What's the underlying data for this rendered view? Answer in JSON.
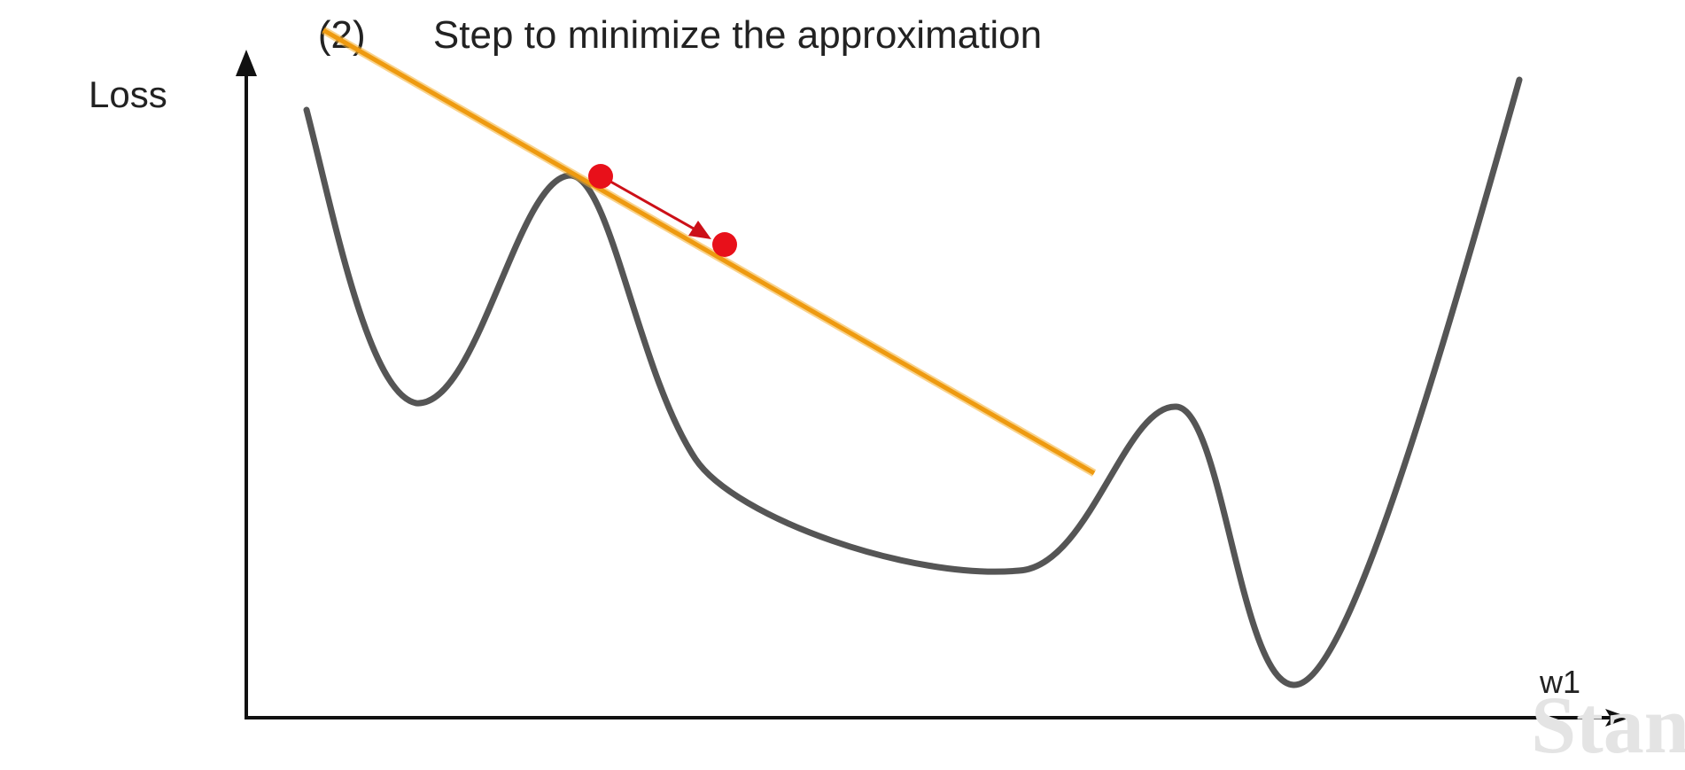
{
  "header": {
    "step_number": "(2)",
    "step_text": "Step to minimize the approximation"
  },
  "axes": {
    "y_label": "Loss",
    "x_label": "w1"
  },
  "watermark": {
    "text": "Stan"
  },
  "colors": {
    "loss_curve": "#555555",
    "tangent_line": "#f0a010",
    "step_points": "#e8101a",
    "axis": "#111111"
  }
}
